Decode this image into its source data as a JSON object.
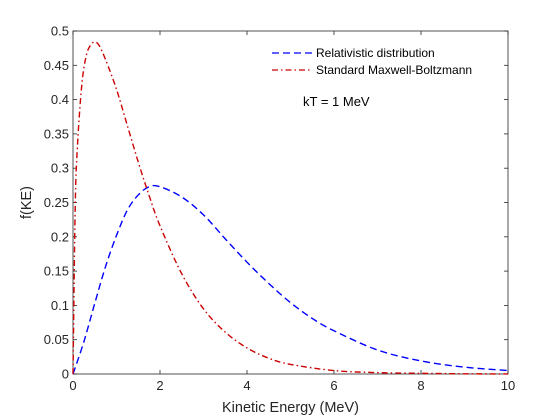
{
  "chart_data": {
    "type": "line",
    "xlabel": "Kinetic Energy (MeV)",
    "ylabel": "f(KE)",
    "xlim": [
      0,
      10
    ],
    "ylim": [
      0,
      0.5
    ],
    "xticks": [
      0,
      2,
      4,
      6,
      8,
      10
    ],
    "yticks": [
      0,
      0.05,
      0.1,
      0.15,
      0.2,
      0.25,
      0.3,
      0.35,
      0.4,
      0.45,
      0.5
    ],
    "xtick_labels": [
      "0",
      "2",
      "4",
      "6",
      "8",
      "10"
    ],
    "ytick_labels": [
      "0",
      "0.05",
      "0.1",
      "0.15",
      "0.2",
      "0.25",
      "0.3",
      "0.35",
      "0.4",
      "0.45",
      "0.5"
    ],
    "grid": false,
    "legend_position": "top-right",
    "annotation": "kT = 1 MeV",
    "series": [
      {
        "name": "Relativistic distribution",
        "color": "#0000ff",
        "style": "dashed",
        "x": [
          0,
          0.25,
          0.5,
          0.75,
          1,
          1.25,
          1.5,
          1.75,
          2,
          2.5,
          3,
          3.5,
          4,
          4.5,
          5,
          5.5,
          6,
          7,
          8,
          9,
          10
        ],
        "y": [
          0,
          0.047,
          0.103,
          0.157,
          0.202,
          0.239,
          0.261,
          0.273,
          0.273,
          0.258,
          0.232,
          0.197,
          0.163,
          0.132,
          0.104,
          0.081,
          0.063,
          0.035,
          0.019,
          0.01,
          0.005
        ]
      },
      {
        "name": "Standard Maxwell-Boltzmann",
        "color": "#cc0000",
        "style": "dashdot",
        "x": [
          0,
          0.05,
          0.1,
          0.2,
          0.3,
          0.4,
          0.5,
          0.6,
          0.75,
          1,
          1.25,
          1.5,
          1.75,
          2,
          2.5,
          3,
          3.5,
          4,
          4.5,
          5,
          6,
          7,
          8,
          9,
          10
        ],
        "y": [
          0,
          0.24,
          0.33,
          0.42,
          0.463,
          0.479,
          0.484,
          0.479,
          0.458,
          0.415,
          0.362,
          0.309,
          0.26,
          0.216,
          0.146,
          0.095,
          0.061,
          0.038,
          0.023,
          0.014,
          0.005,
          0.002,
          0.001,
          0.0003,
          0.0001
        ]
      }
    ]
  }
}
